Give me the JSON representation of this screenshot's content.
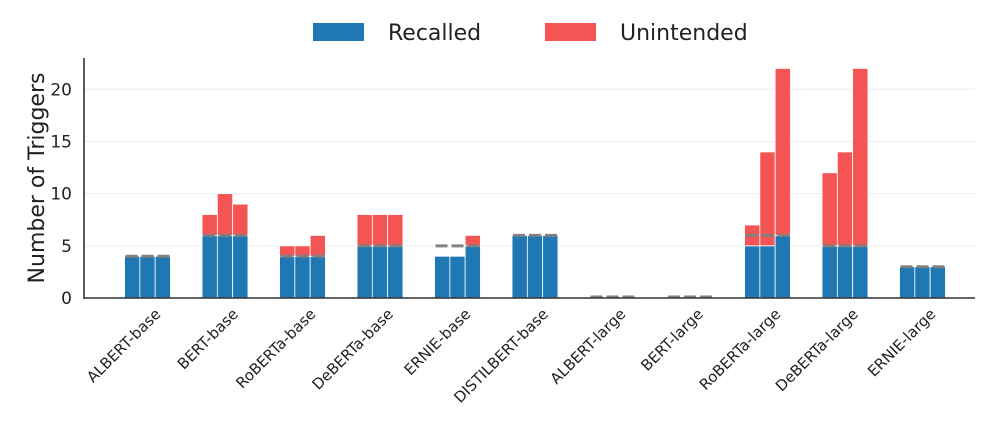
{
  "chart_data": {
    "type": "bar",
    "stacked": true,
    "grouped": true,
    "categories": [
      "ALBERT-base",
      "BERT-base",
      "RoBERTa-base",
      "DeBERTa-base",
      "ERNIE-base",
      "DISTILBERT-base",
      "ALBERT-large",
      "BERT-large",
      "RoBERTa-large",
      "DeBERTa-large",
      "ERNIE-large"
    ],
    "bars_per_group": 3,
    "series": [
      {
        "name": "Recalled",
        "color": "#1f77b4",
        "values": [
          [
            4,
            4,
            4
          ],
          [
            6,
            6,
            6
          ],
          [
            4,
            4,
            4
          ],
          [
            5,
            5,
            5
          ],
          [
            4,
            4,
            5
          ],
          [
            6,
            6,
            6
          ],
          [
            0,
            0,
            0
          ],
          [
            0,
            0,
            0
          ],
          [
            5,
            5,
            6
          ],
          [
            5,
            5,
            5
          ],
          [
            3,
            3,
            3
          ]
        ]
      },
      {
        "name": "Unintended",
        "color": "#f45454",
        "values": [
          [
            0,
            0,
            0
          ],
          [
            2,
            4,
            3
          ],
          [
            1,
            1,
            2
          ],
          [
            3,
            3,
            3
          ],
          [
            0,
            0,
            1
          ],
          [
            0,
            0,
            0
          ],
          [
            0,
            0,
            0
          ],
          [
            0,
            0,
            0
          ],
          [
            2,
            9,
            16
          ],
          [
            7,
            9,
            17
          ],
          [
            0,
            0,
            0
          ]
        ]
      }
    ],
    "reference_lines": [
      4,
      6,
      4,
      5,
      5,
      6,
      0,
      0,
      6,
      5,
      3
    ],
    "reference_color": "#808080",
    "ylabel": "Number of Triggers",
    "xlabel": "",
    "ylim": [
      0,
      23
    ],
    "yticks": [
      0,
      5,
      10,
      15,
      20
    ],
    "grid": true,
    "legend_position": "top-center"
  }
}
